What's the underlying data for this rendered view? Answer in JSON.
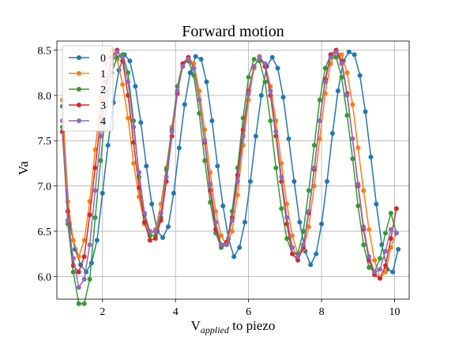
{
  "chart_data": {
    "type": "line",
    "title": "Forward motion",
    "xlabel_base": "V",
    "xlabel_sub": "applied",
    "xlabel_rest": " to piezo",
    "ylabel": "Va",
    "xlim": [
      0.75,
      10.4
    ],
    "ylim": [
      5.75,
      8.6
    ],
    "xticks": [
      2,
      4,
      6,
      8,
      10
    ],
    "yticks": [
      6.0,
      6.5,
      7.0,
      7.5,
      8.0,
      8.5
    ],
    "xtick_labels": [
      "2",
      "4",
      "6",
      "8",
      "10"
    ],
    "ytick_labels": [
      "6.0",
      "6.5",
      "7.0",
      "7.5",
      "8.0",
      "8.5"
    ],
    "grid": true,
    "legend_position": "upper left",
    "series": [
      {
        "name": "0",
        "color": "#1f77b4",
        "x": [
          0.9,
          1.1,
          1.25,
          1.4,
          1.55,
          1.7,
          1.85,
          2.0,
          2.15,
          2.3,
          2.45,
          2.6,
          2.75,
          2.9,
          3.05,
          3.2,
          3.35,
          3.5,
          3.65,
          3.8,
          3.95,
          4.1,
          4.25,
          4.4,
          4.55,
          4.7,
          4.85,
          5.0,
          5.15,
          5.3,
          5.45,
          5.6,
          5.75,
          5.9,
          6.05,
          6.2,
          6.35,
          6.5,
          6.65,
          6.8,
          6.95,
          7.1,
          7.25,
          7.4,
          7.55,
          7.7,
          7.85,
          8.0,
          8.15,
          8.3,
          8.45,
          8.6,
          8.75,
          8.9,
          9.05,
          9.2,
          9.35,
          9.5,
          9.65,
          9.8,
          9.95,
          10.1
        ],
        "y": [
          7.88,
          6.58,
          6.3,
          6.13,
          6.05,
          6.15,
          6.4,
          6.92,
          7.45,
          7.92,
          8.28,
          8.45,
          8.38,
          8.1,
          7.7,
          7.22,
          6.8,
          6.5,
          6.43,
          6.55,
          6.92,
          7.42,
          7.9,
          8.25,
          8.43,
          8.4,
          8.15,
          7.72,
          7.22,
          6.78,
          6.42,
          6.22,
          6.32,
          6.6,
          7.05,
          7.55,
          8.0,
          8.32,
          8.42,
          8.3,
          7.98,
          7.52,
          7.05,
          6.6,
          6.28,
          6.13,
          6.25,
          6.58,
          7.05,
          7.58,
          8.05,
          8.38,
          8.48,
          8.45,
          8.22,
          7.82,
          7.32,
          6.8,
          6.35,
          6.08,
          6.05,
          6.3
        ]
      },
      {
        "name": "1",
        "color": "#ff7f0e",
        "x": [
          0.9,
          1.05,
          1.2,
          1.35,
          1.5,
          1.65,
          1.8,
          1.95,
          2.1,
          2.25,
          2.4,
          2.55,
          2.7,
          2.85,
          3.0,
          3.15,
          3.3,
          3.45,
          3.6,
          3.75,
          3.9,
          4.05,
          4.2,
          4.35,
          4.5,
          4.65,
          4.8,
          4.95,
          5.1,
          5.25,
          5.4,
          5.55,
          5.7,
          5.85,
          6.0,
          6.15,
          6.3,
          6.45,
          6.6,
          6.75,
          6.9,
          7.05,
          7.2,
          7.35,
          7.5,
          7.65,
          7.8,
          7.95,
          8.1,
          8.25,
          8.4,
          8.55,
          8.7,
          8.85,
          9.0,
          9.15,
          9.3,
          9.45,
          9.6,
          9.75,
          9.9,
          10.05
        ],
        "y": [
          7.95,
          6.83,
          6.4,
          6.22,
          6.4,
          6.83,
          7.4,
          7.97,
          8.35,
          8.5,
          8.4,
          8.12,
          7.75,
          7.25,
          6.88,
          6.58,
          6.45,
          6.52,
          6.8,
          7.2,
          7.65,
          8.05,
          8.32,
          8.42,
          8.35,
          8.05,
          7.62,
          7.15,
          6.72,
          6.45,
          6.35,
          6.5,
          6.9,
          7.45,
          7.95,
          8.3,
          8.43,
          8.35,
          8.1,
          7.72,
          7.25,
          6.8,
          6.45,
          6.25,
          6.3,
          6.55,
          7.0,
          7.52,
          8.02,
          8.35,
          8.48,
          8.45,
          8.25,
          7.9,
          7.42,
          6.95,
          6.52,
          6.18,
          5.98,
          6.05,
          6.32,
          6.48
        ]
      },
      {
        "name": "2",
        "color": "#2ca02c",
        "x": [
          0.9,
          1.05,
          1.2,
          1.35,
          1.5,
          1.65,
          1.8,
          1.95,
          2.1,
          2.25,
          2.4,
          2.55,
          2.7,
          2.85,
          3.0,
          3.15,
          3.3,
          3.45,
          3.6,
          3.75,
          3.9,
          4.05,
          4.2,
          4.35,
          4.5,
          4.65,
          4.8,
          4.95,
          5.1,
          5.25,
          5.4,
          5.55,
          5.7,
          5.85,
          6.0,
          6.15,
          6.3,
          6.45,
          6.6,
          6.75,
          6.9,
          7.05,
          7.2,
          7.35,
          7.5,
          7.65,
          7.8,
          7.95,
          8.1,
          8.25,
          8.4,
          8.55,
          8.7,
          8.85,
          9.0,
          9.15,
          9.3,
          9.45,
          9.6,
          9.75,
          9.9,
          10.05
        ],
        "y": [
          7.65,
          6.58,
          6.05,
          5.7,
          5.7,
          5.97,
          6.65,
          7.28,
          7.88,
          8.25,
          8.42,
          8.45,
          8.25,
          7.72,
          7.1,
          6.68,
          6.45,
          6.45,
          6.65,
          7.18,
          7.62,
          8.1,
          8.35,
          8.38,
          8.22,
          7.8,
          7.28,
          6.82,
          6.48,
          6.32,
          6.35,
          6.72,
          7.2,
          7.75,
          8.2,
          8.4,
          8.38,
          8.15,
          7.72,
          7.2,
          6.75,
          6.42,
          6.25,
          6.25,
          6.5,
          6.95,
          7.45,
          7.95,
          8.3,
          8.45,
          8.42,
          8.2,
          7.78,
          7.3,
          6.78,
          6.35,
          6.1,
          6.05,
          6.2,
          6.48,
          6.7,
          6.48
        ]
      },
      {
        "name": "3",
        "color": "#d62728",
        "x": [
          0.9,
          1.05,
          1.2,
          1.35,
          1.5,
          1.65,
          1.8,
          1.95,
          2.1,
          2.25,
          2.4,
          2.55,
          2.7,
          2.85,
          3.0,
          3.15,
          3.3,
          3.45,
          3.6,
          3.75,
          3.9,
          4.05,
          4.2,
          4.35,
          4.5,
          4.65,
          4.8,
          4.95,
          5.1,
          5.25,
          5.4,
          5.55,
          5.7,
          5.85,
          6.0,
          6.15,
          6.3,
          6.45,
          6.6,
          6.75,
          6.9,
          7.05,
          7.2,
          7.35,
          7.5,
          7.65,
          7.8,
          7.95,
          8.1,
          8.25,
          8.4,
          8.55,
          8.7,
          8.85,
          9.0,
          9.15,
          9.3,
          9.45,
          9.6,
          9.75,
          9.9,
          10.05
        ],
        "y": [
          7.6,
          6.72,
          6.12,
          6.05,
          6.22,
          6.68,
          7.2,
          7.75,
          8.15,
          8.42,
          8.5,
          8.38,
          8.0,
          7.48,
          6.98,
          6.6,
          6.4,
          6.42,
          6.62,
          7.05,
          7.55,
          8.02,
          8.35,
          8.42,
          8.3,
          7.95,
          7.48,
          6.95,
          6.52,
          6.35,
          6.38,
          6.65,
          7.12,
          7.62,
          8.05,
          8.32,
          8.42,
          8.32,
          8.0,
          7.55,
          7.05,
          6.58,
          6.25,
          6.18,
          6.32,
          6.7,
          7.18,
          7.72,
          8.18,
          8.45,
          8.5,
          8.38,
          8.02,
          7.52,
          7.0,
          6.52,
          6.18,
          6.02,
          5.98,
          6.12,
          6.42,
          6.75
        ]
      },
      {
        "name": "4",
        "color": "#9467bd",
        "x": [
          0.9,
          1.05,
          1.2,
          1.35,
          1.5,
          1.65,
          1.8,
          1.95,
          2.1,
          2.25,
          2.4,
          2.55,
          2.7,
          2.85,
          3.0,
          3.15,
          3.3,
          3.45,
          3.6,
          3.75,
          3.9,
          4.05,
          4.2,
          4.35,
          4.5,
          4.65,
          4.8,
          4.95,
          5.1,
          5.25,
          5.4,
          5.55,
          5.7,
          5.85,
          6.0,
          6.15,
          6.3,
          6.45,
          6.6,
          6.75,
          6.9,
          7.05,
          7.2,
          7.35,
          7.5,
          7.65,
          7.8,
          7.95,
          8.1,
          8.25,
          8.4,
          8.55,
          8.7,
          8.85,
          9.0,
          9.15,
          9.3,
          9.45,
          9.6,
          9.75,
          9.9,
          10.05
        ],
        "y": [
          7.72,
          6.62,
          6.2,
          5.88,
          5.97,
          6.35,
          6.95,
          7.55,
          8.05,
          8.35,
          8.48,
          8.42,
          8.15,
          7.65,
          7.15,
          6.7,
          6.5,
          6.5,
          6.7,
          7.1,
          7.6,
          8.05,
          8.32,
          8.4,
          8.3,
          7.95,
          7.5,
          7.02,
          6.6,
          6.35,
          6.35,
          6.62,
          7.05,
          7.55,
          8.02,
          8.32,
          8.42,
          8.35,
          8.05,
          7.6,
          7.1,
          6.65,
          6.32,
          6.22,
          6.35,
          6.72,
          7.2,
          7.72,
          8.15,
          8.42,
          8.48,
          8.35,
          8.0,
          7.52,
          7.02,
          6.55,
          6.22,
          6.05,
          6.08,
          6.28,
          6.52,
          6.48
        ]
      }
    ]
  }
}
